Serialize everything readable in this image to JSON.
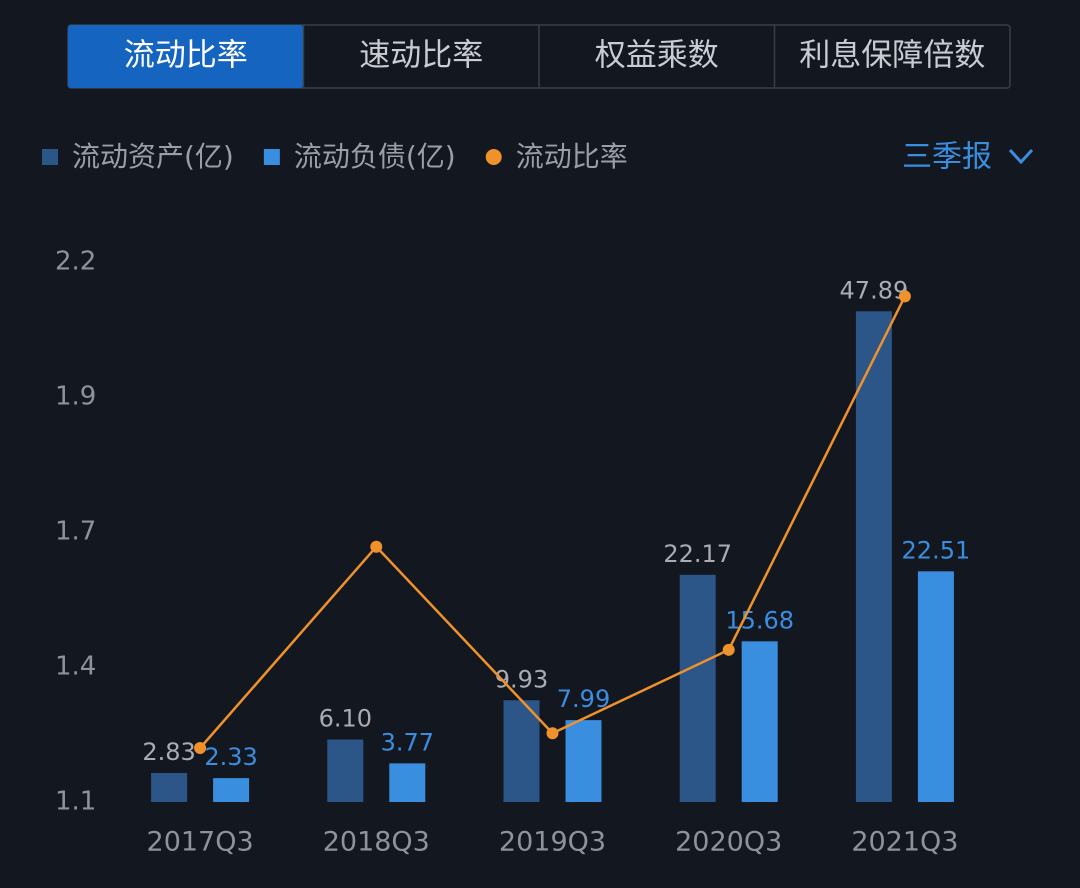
{
  "tabs": [
    "流动比率",
    "速动比率",
    "权益乘数",
    "利息保障倍数"
  ],
  "active_tab": 0,
  "period": "三季报",
  "chart_data": {
    "type": "bar",
    "categories": [
      "2017Q3",
      "2018Q3",
      "2019Q3",
      "2020Q3",
      "2021Q3"
    ],
    "series": [
      {
        "name": "流动资产(亿)",
        "color": "#2b5687",
        "label_color": "#a9acb3",
        "axis": "y2",
        "values": [
          2.83,
          6.1,
          9.93,
          22.17,
          47.89
        ],
        "value_labels": [
          "2.83",
          "6.10",
          "9.93",
          "22.17",
          "47.89"
        ]
      },
      {
        "name": "流动负债(亿)",
        "color": "#3a8ee0",
        "label_color": "#3a8ee0",
        "axis": "y2",
        "values": [
          2.33,
          3.77,
          7.99,
          15.68,
          22.51
        ],
        "value_labels": [
          "2.33",
          "3.77",
          "7.99",
          "15.68",
          "22.51"
        ]
      },
      {
        "name": "流动比率",
        "type": "line",
        "color": "#f0922b",
        "values": [
          1.21,
          1.62,
          1.24,
          1.41,
          2.13
        ]
      }
    ],
    "ylim": [
      1.1,
      2.2
    ],
    "yticks": [
      1.1,
      {
        "value": 1.375,
        "label": "1.4"
      },
      {
        "value": 1.65,
        "label": "1.7"
      },
      {
        "value": 1.925,
        "label": "1.9"
      },
      2.2
    ],
    "y2lim": [
      0,
      52.7
    ]
  }
}
